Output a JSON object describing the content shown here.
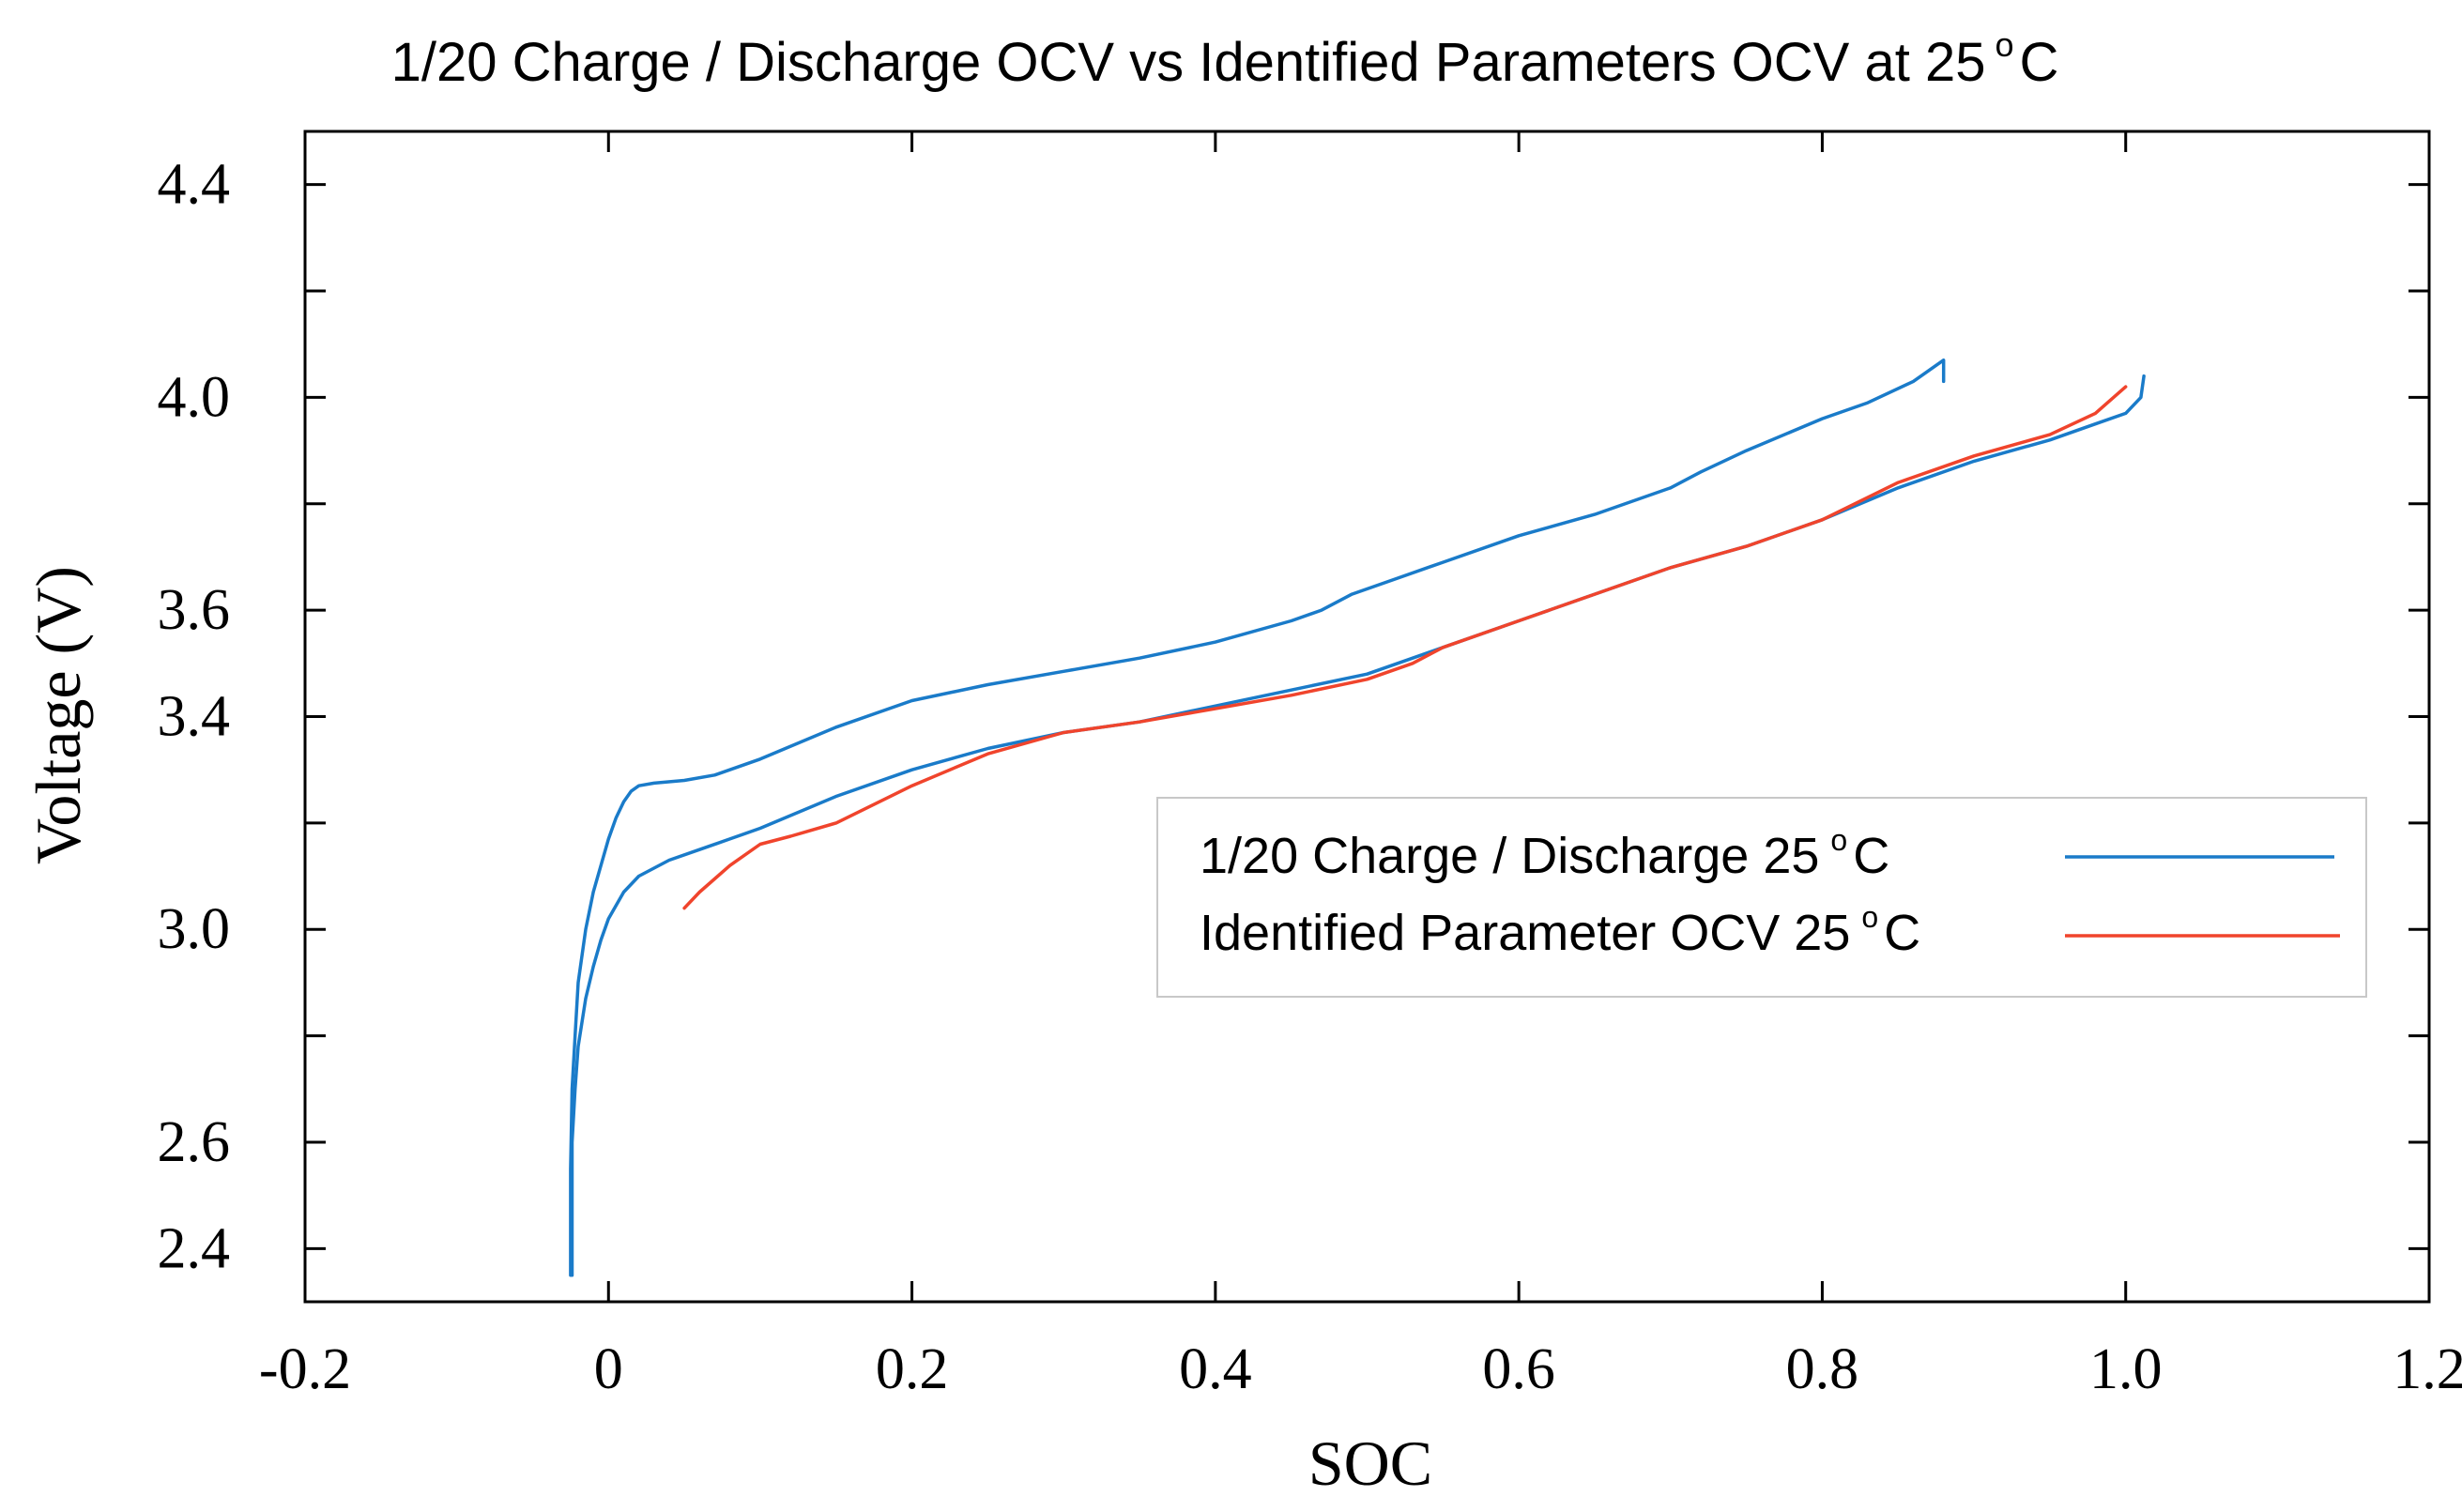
{
  "chart_data": {
    "type": "line",
    "title": "1/20 Charge / Discharge OCV vs Identified Parameters OCV at 25°C",
    "title_main": "1/20 Charge / Discharge OCV vs Identified Parameters OCV at 25",
    "title_unit": "C",
    "title_degree": "o",
    "xlabel": "SOC",
    "ylabel": "Voltage (V)",
    "xlim": [
      -0.2,
      1.2
    ],
    "ylim": [
      2.3,
      4.5
    ],
    "xticks": [
      -0.2,
      0,
      0.2,
      0.4,
      0.6,
      0.8,
      1.0,
      1.2
    ],
    "xtick_labels": [
      "-0.2",
      "0",
      "0.2",
      "0.4",
      "0.6",
      "0.8",
      "1.0",
      "1.2"
    ],
    "yticks": [
      2.4,
      2.6,
      2.8,
      3.0,
      3.2,
      3.4,
      3.6,
      3.8,
      4.0,
      4.2,
      4.4
    ],
    "ytick_labels": [
      "2.4",
      "2.6",
      "",
      "3.0",
      "",
      "3.4",
      "3.6",
      "",
      "4.0",
      "",
      "4.4"
    ],
    "grid": false,
    "legend_position": "middle-right",
    "series": [
      {
        "name": "1/20 Charge / Discharge 25 °C",
        "legend_main": "1/20 Charge / Discharge 25",
        "legend_unit": "C",
        "legend_degree": "o",
        "color": "#1a7bc9",
        "segments": [
          {
            "label": "charge",
            "x": [
              -0.025,
              -0.025,
              -0.024,
              -0.022,
              -0.02,
              -0.015,
              -0.01,
              -0.005,
              0,
              0.005,
              0.01,
              0.015,
              0.02,
              0.03,
              0.05,
              0.07,
              0.1,
              0.15,
              0.2,
              0.25,
              0.3,
              0.35,
              0.4,
              0.45,
              0.47,
              0.49,
              0.52,
              0.55,
              0.6,
              0.65,
              0.7,
              0.72,
              0.75,
              0.8,
              0.83,
              0.86,
              0.88,
              0.88
            ],
            "y": [
              2.35,
              2.55,
              2.7,
              2.8,
              2.9,
              3.0,
              3.07,
              3.12,
              3.17,
              3.21,
              3.24,
              3.26,
              3.27,
              3.275,
              3.28,
              3.29,
              3.32,
              3.38,
              3.43,
              3.46,
              3.485,
              3.51,
              3.54,
              3.58,
              3.6,
              3.63,
              3.66,
              3.69,
              3.74,
              3.78,
              3.83,
              3.86,
              3.9,
              3.96,
              3.99,
              4.03,
              4.07,
              4.03
            ]
          },
          {
            "label": "discharge",
            "x": [
              -0.024,
              -0.024,
              -0.022,
              -0.02,
              -0.015,
              -0.01,
              -0.005,
              0,
              0.01,
              0.02,
              0.04,
              0.06,
              0.08,
              0.1,
              0.15,
              0.2,
              0.25,
              0.3,
              0.35,
              0.4,
              0.45,
              0.5,
              0.53,
              0.55,
              0.6,
              0.65,
              0.7,
              0.75,
              0.8,
              0.85,
              0.9,
              0.95,
              0.98,
              1.0,
              1.01,
              1.012
            ],
            "y": [
              2.35,
              2.6,
              2.7,
              2.78,
              2.87,
              2.93,
              2.98,
              3.02,
              3.07,
              3.1,
              3.13,
              3.15,
              3.17,
              3.19,
              3.25,
              3.3,
              3.34,
              3.37,
              3.39,
              3.42,
              3.45,
              3.48,
              3.51,
              3.53,
              3.58,
              3.63,
              3.68,
              3.72,
              3.77,
              3.83,
              3.88,
              3.92,
              3.95,
              3.97,
              4.0,
              4.04
            ]
          }
        ]
      },
      {
        "name": "Identified Parameter OCV 25 °C",
        "legend_main": "Identified Parameter OCV 25",
        "legend_unit": "C",
        "legend_degree": "o",
        "color": "#f0442c",
        "segments": [
          {
            "label": "identified",
            "x": [
              0.05,
              0.06,
              0.08,
              0.1,
              0.12,
              0.15,
              0.2,
              0.25,
              0.3,
              0.35,
              0.4,
              0.45,
              0.5,
              0.53,
              0.55,
              0.6,
              0.65,
              0.7,
              0.75,
              0.8,
              0.85,
              0.9,
              0.95,
              0.98,
              1.0
            ],
            "y": [
              3.04,
              3.07,
              3.12,
              3.16,
              3.175,
              3.2,
              3.27,
              3.33,
              3.37,
              3.39,
              3.415,
              3.44,
              3.47,
              3.5,
              3.53,
              3.58,
              3.63,
              3.68,
              3.72,
              3.77,
              3.84,
              3.89,
              3.93,
              3.97,
              4.02
            ]
          }
        ]
      }
    ]
  }
}
